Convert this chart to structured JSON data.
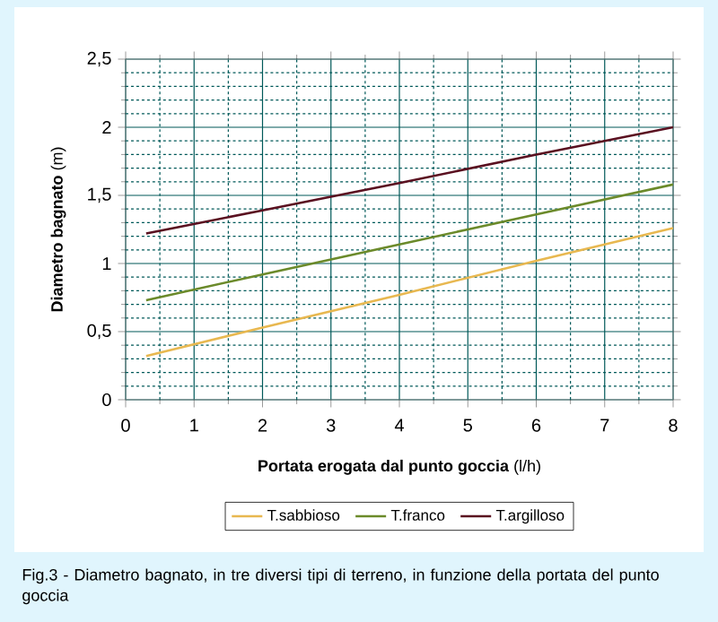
{
  "chart_data": {
    "type": "line",
    "xlabel": "**Portata erogata dal punto goccia**  (l/h)",
    "ylabel": "**Diametro bagnato** (m)",
    "x": [
      0.3,
      2,
      4,
      6,
      8
    ],
    "series": [
      {
        "name": "T.sabbioso",
        "color": "#e8b850",
        "values": [
          0.32,
          0.53,
          0.77,
          1.02,
          1.26
        ]
      },
      {
        "name": "T.franco",
        "color": "#6b8a2a",
        "values": [
          0.73,
          0.92,
          1.14,
          1.36,
          1.58
        ]
      },
      {
        "name": "T.argilloso",
        "color": "#5a1020",
        "values": [
          1.22,
          1.39,
          1.59,
          1.8,
          2.0
        ]
      }
    ],
    "xlim": [
      0,
      8
    ],
    "ylim": [
      0,
      2.5
    ],
    "xticks": [
      0,
      {
        "value": 0.5,
        "label": null
      },
      1,
      {
        "value": 1.5,
        "label": null
      },
      2,
      {
        "value": 2.5,
        "label": null
      },
      3,
      {
        "value": 3.5,
        "label": null
      },
      4,
      {
        "value": 4.5,
        "label": null
      },
      5,
      {
        "value": 5.5,
        "label": null
      },
      6,
      {
        "value": 6.5,
        "label": null
      },
      7,
      {
        "value": 7.5,
        "label": null
      },
      8
    ],
    "yticks": [
      0,
      {
        "value": 0.1,
        "label": null
      },
      {
        "value": 0.2,
        "label": null
      },
      {
        "value": 0.3,
        "label": null
      },
      {
        "value": 0.4,
        "label": null
      },
      {
        "value": 0.5,
        "label": "0,5"
      },
      {
        "value": 0.6,
        "label": null
      },
      {
        "value": 0.7,
        "label": null
      },
      {
        "value": 0.8,
        "label": null
      },
      {
        "value": 0.9,
        "label": null
      },
      1,
      {
        "value": 1.1,
        "label": null
      },
      {
        "value": 1.2,
        "label": null
      },
      {
        "value": 1.3,
        "label": null
      },
      {
        "value": 1.4,
        "label": null
      },
      {
        "value": 1.5,
        "label": "1,5"
      },
      {
        "value": 1.6,
        "label": null
      },
      {
        "value": 1.7,
        "label": null
      },
      {
        "value": 1.8,
        "label": null
      },
      {
        "value": 1.9,
        "label": null
      },
      2,
      {
        "value": 2.1,
        "label": null
      },
      {
        "value": 2.2,
        "label": null
      },
      {
        "value": 2.3,
        "label": null
      },
      {
        "value": 2.4,
        "label": null
      },
      {
        "value": 2.5,
        "label": "2,5"
      }
    ],
    "grid": true,
    "legend": "bottom",
    "marker": "none",
    "line_style": "solid",
    "annotations": [
      "Fig.3 - Diametro bagnato, in tre diversi tipi di terreno, in funzione della portata del punto goccia"
    ]
  }
}
